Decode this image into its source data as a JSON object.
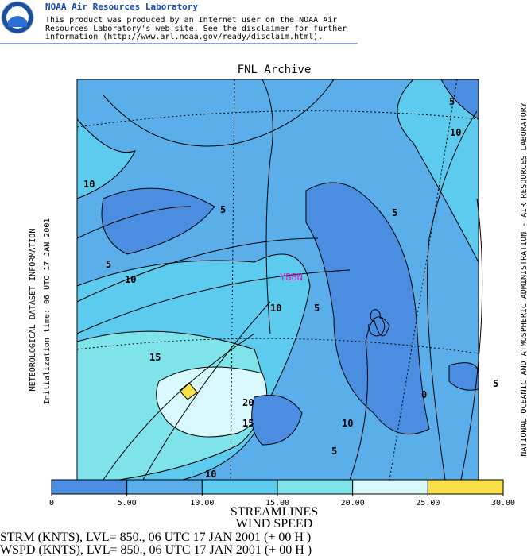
{
  "header": {
    "title": "NOAA Air Resources Laboratory",
    "lines": [
      "This product was produced by an Internet user on the NOAA Air",
      "Resources Laboratory's web site.  See the disclaimer for further",
      "information (http://www.arl.noaa.gov/ready/disclaim.html)."
    ],
    "logo": "NOAA"
  },
  "map": {
    "title": "FNL Archive",
    "station": "YBBN",
    "contour_labels": [
      "5",
      "10",
      "10",
      "5",
      "5",
      "5",
      "10",
      "10",
      "5",
      "15",
      "0",
      "5",
      "20",
      "15",
      "10",
      "10",
      "5"
    ],
    "left_labels": [
      "METEOROLOGICAL DATASET INFORMATION",
      "Initialization time: 06 UTC 17 JAN 2001"
    ],
    "right_label": "NATIONAL OCEANIC AND ATMOSPHERIC ADMINISTRATION - AIR RESOURCES LABORATORY"
  },
  "colorbar": {
    "colors": [
      "#4b8de0",
      "#5aaeea",
      "#5ccbee",
      "#7fe3ea",
      "#d9f8fb",
      "#f7e04a"
    ],
    "ticks": [
      0,
      {
        "value": 5,
        "label": "5.00"
      },
      {
        "value": 10,
        "label": "10.00"
      },
      {
        "value": 15,
        "label": "15.00"
      },
      {
        "value": 20,
        "label": "20.00"
      },
      {
        "value": 25,
        "label": "25.00"
      },
      {
        "value": 30,
        "label": "30.00"
      }
    ]
  },
  "footer": [
    "STREAMLINES",
    "WIND SPEED",
    "STRM (KNTS),  LVL= 850., 06 UTC 17 JAN 2001 (+ 00 H )",
    "WSPD (KNTS),  LVL= 850., 06 UTC 17 JAN 2001 (+ 00 H )"
  ]
}
